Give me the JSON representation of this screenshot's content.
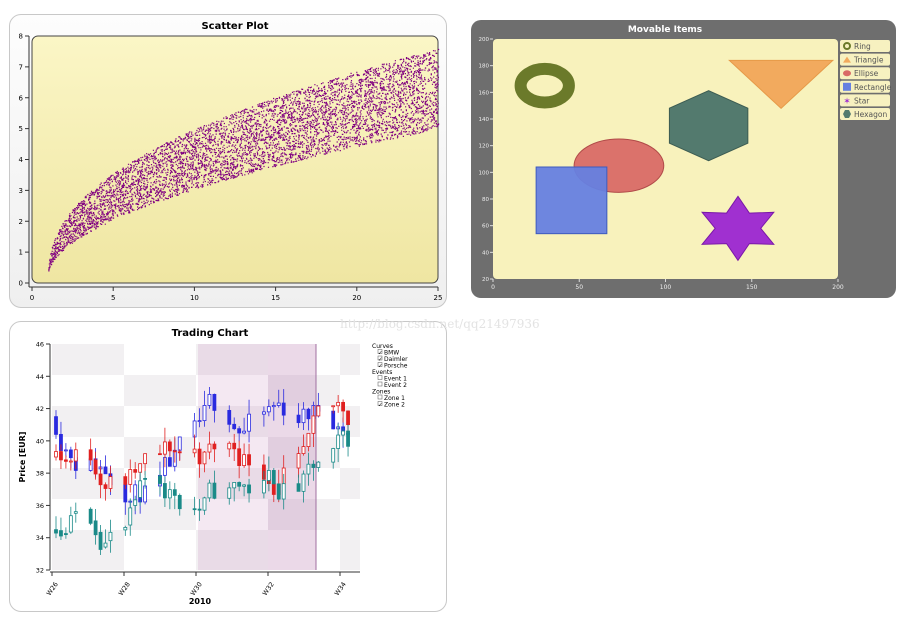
{
  "watermark": "http://blog.csdn.net/qq21497936",
  "chart_data": [
    {
      "type": "scatter",
      "title": "Scatter Plot",
      "xlim": [
        0,
        25
      ],
      "ylim": [
        0,
        8
      ],
      "x_ticks": [
        "0",
        "5",
        "10",
        "15",
        "20",
        "25"
      ],
      "y_ticks": [
        "0",
        "1",
        "2",
        "3",
        "4",
        "5",
        "6",
        "7",
        "8"
      ],
      "series": [
        {
          "color": "#800080",
          "x_range": [
            1,
            25
          ],
          "lower_bound": "ln(x)^1.0 approx from 0.3 at x=1 to 5.0 at x=25",
          "upper_bound": "from 0.3 at x=1 to 7.6 at x=25",
          "point_count_approx": 6000
        }
      ],
      "background": "#f8f2bc",
      "grid": false
    },
    {
      "type": "scatter",
      "title": "Movable Items",
      "xlim": [
        0,
        200
      ],
      "ylim": [
        20,
        200
      ],
      "x_ticks": [
        "0",
        "50",
        "100",
        "150",
        "200"
      ],
      "y_ticks": [
        "20",
        "40",
        "60",
        "80",
        "100",
        "120",
        "140",
        "160",
        "180",
        "200"
      ],
      "legend": [
        "Ring",
        "Triangle",
        "Ellipse",
        "Rectangle",
        "Star",
        "Hexagon"
      ],
      "legend_position": "right",
      "items": [
        {
          "name": "Ring",
          "color": "#6b7a2a",
          "cx": 30,
          "cy": 165,
          "rx": 20,
          "ry": 18
        },
        {
          "name": "Triangle",
          "color": "#f2aa5e",
          "x1": 137,
          "x2": 197,
          "y_top": 184,
          "y_tip": 148
        },
        {
          "name": "Ellipse",
          "color": "#d96a66",
          "cx": 73,
          "cy": 105,
          "rx": 26,
          "ry": 20
        },
        {
          "name": "Rectangle",
          "color": "#6680e0",
          "x1": 25,
          "x2": 66,
          "y1": 54,
          "y2": 104
        },
        {
          "name": "Star",
          "color": "#a030d0",
          "cx": 142,
          "cy": 58,
          "r": 20
        },
        {
          "name": "Hexagon",
          "color": "#537a6e",
          "cx": 125,
          "cy": 135,
          "r": 25
        }
      ],
      "background": "#f8f2bc"
    },
    {
      "type": "candlestick",
      "title": "Trading Chart",
      "xlabel": "2010",
      "ylabel": "Price [EUR]",
      "ylim": [
        32,
        46
      ],
      "y_ticks": [
        "32",
        "34",
        "36",
        "38",
        "40",
        "42",
        "44",
        "46"
      ],
      "x_ticks": [
        "W26",
        "W28",
        "W30",
        "W32",
        "W34"
      ],
      "legend": {
        "curves_title": "Curves",
        "curves": [
          "BMW",
          "Daimler",
          "Porsche"
        ],
        "events_title": "Events",
        "events": [
          "Event 1",
          "Event 2"
        ],
        "zones_title": "Zones",
        "zones": [
          "Zone 1",
          "Zone 2"
        ]
      },
      "legend_position": "right",
      "series": [
        {
          "name": "BMW",
          "color": "#2a2adf"
        },
        {
          "name": "Daimler",
          "color": "#e02020"
        },
        {
          "name": "Porsche",
          "color": "#1a8a88"
        }
      ]
    }
  ]
}
